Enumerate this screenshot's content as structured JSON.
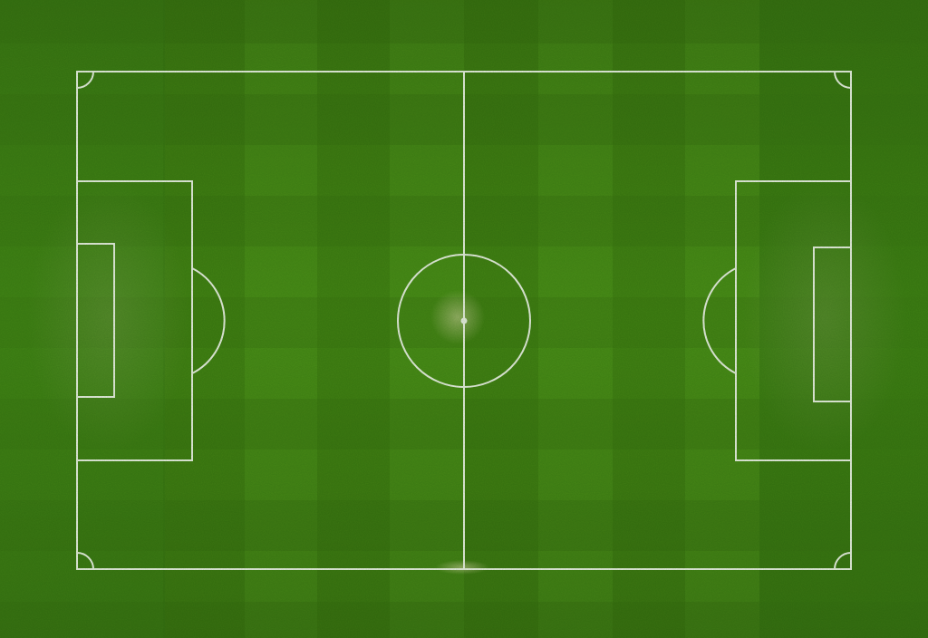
{
  "colors": {
    "grass_light": "#4a8d17",
    "grass_dark": "#3b7510",
    "grass_side": "#3d7d14",
    "line": "#e8eee0",
    "spot_glow": "#c8c9a0"
  },
  "pitch": {
    "markings": [
      "touchlines",
      "goal-lines",
      "halfway-line",
      "center-circle",
      "center-spot",
      "penalty-areas",
      "goal-areas",
      "penalty-arcs",
      "corner-arcs"
    ],
    "grass_pattern": "checkerboard-stripes"
  }
}
